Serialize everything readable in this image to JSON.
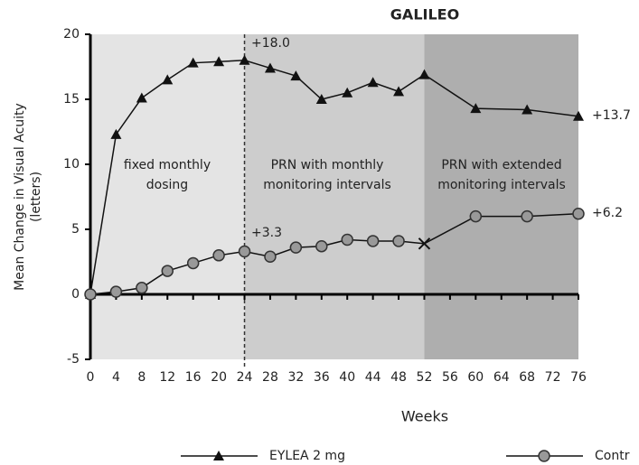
{
  "chart_data": {
    "type": "line",
    "title": "GALILEO",
    "x_label": "Weeks",
    "y_label": [
      "Mean Change in Visual Acuity",
      "(letters)"
    ],
    "x": [
      0,
      4,
      8,
      12,
      16,
      20,
      24,
      28,
      32,
      36,
      40,
      44,
      48,
      52,
      60,
      68,
      76
    ],
    "series": [
      {
        "name": "EYLEA 2 mg",
        "color": "#111111",
        "marker": "triangle",
        "values": [
          0,
          12.3,
          15.1,
          16.5,
          17.8,
          17.9,
          18.0,
          17.4,
          16.8,
          15.0,
          15.5,
          16.3,
          15.6,
          16.9,
          14.3,
          14.2,
          13.7
        ]
      },
      {
        "name": "Contr",
        "color": "#111111",
        "marker": "circle",
        "values": [
          0,
          0.2,
          0.5,
          1.8,
          2.4,
          3.0,
          3.3,
          2.9,
          3.6,
          3.7,
          4.2,
          4.1,
          4.1,
          3.9,
          6.0,
          6.0,
          6.2
        ]
      }
    ],
    "phases": [
      {
        "label": [
          "fixed monthly",
          "dosing"
        ],
        "start": 0,
        "end": 24,
        "color": "#e4e4e4"
      },
      {
        "label": [
          "PRN with monthly",
          "monitoring intervals"
        ],
        "start": 24,
        "end": 52,
        "color": "#cdcdcd"
      },
      {
        "label": [
          "PRN with extended",
          "monitoring intervals"
        ],
        "start": 52,
        "end": 76,
        "color": "#aeaeae"
      }
    ],
    "annotations": [
      "+18.0",
      "+13.7",
      "+3.3",
      "+6.2"
    ],
    "xlim": [
      0,
      76
    ],
    "xticks": [
      0,
      4,
      8,
      12,
      16,
      20,
      24,
      28,
      32,
      36,
      40,
      44,
      48,
      52,
      56,
      60,
      64,
      68,
      72,
      76
    ],
    "ylim": [
      -5,
      20
    ],
    "yticks": [
      -5,
      0,
      5,
      10,
      15,
      20
    ]
  }
}
